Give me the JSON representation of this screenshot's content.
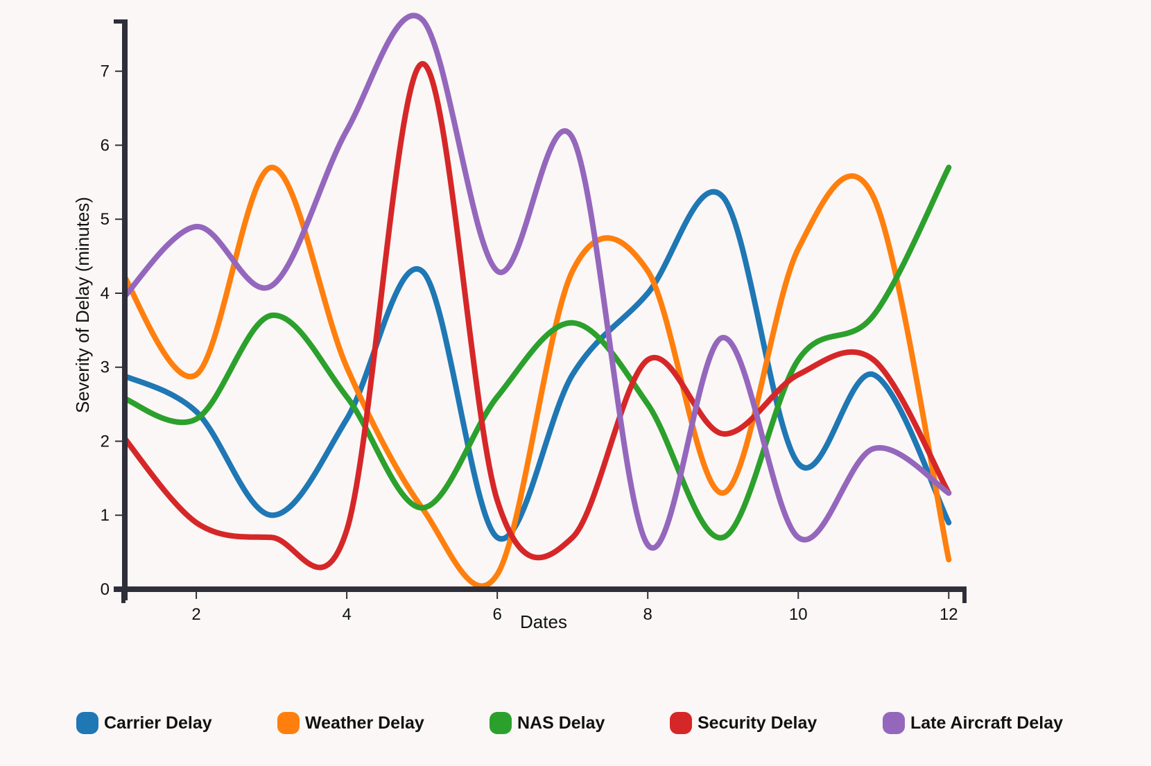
{
  "chart_data": {
    "type": "line",
    "title": "",
    "xlabel": "Dates",
    "ylabel": "Severity of Delay (minutes)",
    "xlim": [
      1.05,
      12.2
    ],
    "ylim": [
      0,
      7.7
    ],
    "x_ticks": [
      2,
      4,
      6,
      8,
      10,
      12
    ],
    "y_ticks": [
      0,
      1,
      2,
      3,
      4,
      5,
      6,
      7
    ],
    "grid": false,
    "legend_position": "bottom",
    "x": [
      1,
      2,
      3,
      4,
      5,
      6,
      7,
      8,
      9,
      10,
      11,
      12
    ],
    "series": [
      {
        "name": "Carrier Delay",
        "color": "#1f77b4",
        "values": [
          2.9,
          2.4,
          1.0,
          2.3,
          4.3,
          0.7,
          2.9,
          4.0,
          5.3,
          1.7,
          2.9,
          0.9
        ]
      },
      {
        "name": "Weather Delay",
        "color": "#ff7f0e",
        "values": [
          4.3,
          2.9,
          5.7,
          3.0,
          1.1,
          0.2,
          4.3,
          4.3,
          1.3,
          4.6,
          5.3,
          0.4
        ]
      },
      {
        "name": "NAS Delay",
        "color": "#2ca02c",
        "values": [
          2.6,
          2.3,
          3.7,
          2.6,
          1.1,
          2.6,
          3.6,
          2.5,
          0.7,
          3.1,
          3.7,
          5.7
        ]
      },
      {
        "name": "Security Delay",
        "color": "#d62728",
        "values": [
          2.1,
          0.9,
          0.7,
          0.8,
          7.1,
          1.2,
          0.7,
          3.1,
          2.1,
          2.9,
          3.1,
          1.3
        ]
      },
      {
        "name": "Late Aircraft Delay",
        "color": "#9467bd",
        "values": [
          3.9,
          4.9,
          4.1,
          6.2,
          7.7,
          4.3,
          6.1,
          0.6,
          3.4,
          0.7,
          1.9,
          1.3
        ]
      }
    ]
  }
}
